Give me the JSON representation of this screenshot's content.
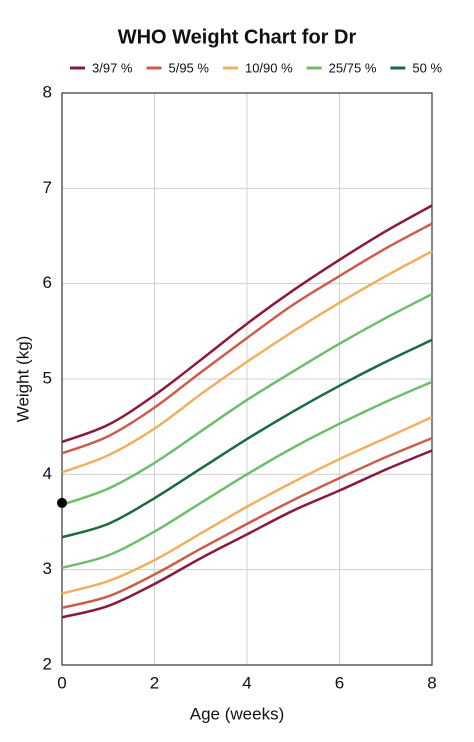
{
  "chart_data": {
    "type": "line",
    "title": "WHO Weight Chart for Dr",
    "x_label": "Age (weeks)",
    "y_label": "Weight (kg)",
    "x": [
      0,
      1,
      2,
      3,
      4,
      5,
      6,
      7,
      8
    ],
    "xlim": [
      0,
      8
    ],
    "xticks": [
      0,
      2,
      4,
      6,
      8
    ],
    "ylim": [
      2,
      8
    ],
    "yticks": [
      2,
      3,
      4,
      5,
      6,
      7,
      8
    ],
    "grid": true,
    "legend": "top",
    "series": [
      {
        "name": "3/97 %",
        "color": "#8b1a3a",
        "values": [
          2.5,
          2.62,
          2.85,
          3.12,
          3.37,
          3.62,
          3.83,
          4.05,
          4.25
        ],
        "values_high": [
          4.34,
          4.52,
          4.83,
          5.2,
          5.58,
          5.93,
          6.25,
          6.55,
          6.82
        ]
      },
      {
        "name": "5/95 %",
        "color": "#cd5c4a",
        "values": [
          2.6,
          2.72,
          2.95,
          3.22,
          3.48,
          3.73,
          3.96,
          4.18,
          4.38
        ],
        "values_high": [
          4.22,
          4.4,
          4.7,
          5.07,
          5.43,
          5.78,
          6.08,
          6.37,
          6.63
        ]
      },
      {
        "name": "10/90 %",
        "color": "#f0b060",
        "values": [
          2.75,
          2.88,
          3.1,
          3.38,
          3.66,
          3.92,
          4.16,
          4.38,
          4.6
        ],
        "values_high": [
          4.02,
          4.2,
          4.48,
          4.84,
          5.18,
          5.5,
          5.8,
          6.08,
          6.34
        ]
      },
      {
        "name": "25/75 %",
        "color": "#6cbf6a",
        "values": [
          3.02,
          3.15,
          3.4,
          3.7,
          4.0,
          4.28,
          4.53,
          4.76,
          4.97
        ],
        "values_high": [
          3.68,
          3.85,
          4.12,
          4.45,
          4.78,
          5.08,
          5.37,
          5.64,
          5.89
        ]
      },
      {
        "name": "50 %",
        "color": "#1a6b3e",
        "values": [
          3.34,
          3.48,
          3.75,
          4.06,
          4.37,
          4.66,
          4.93,
          5.18,
          5.41
        ]
      }
    ],
    "measurement": {
      "x": 0,
      "y": 3.7,
      "color": "#000000"
    }
  }
}
